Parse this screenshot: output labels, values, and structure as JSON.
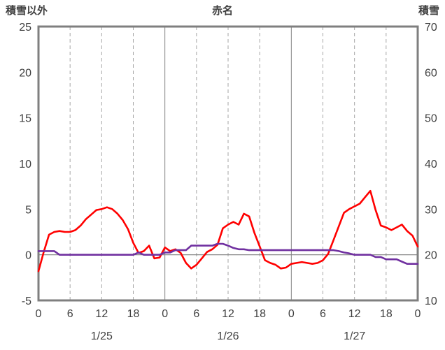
{
  "chart_data": {
    "type": "line",
    "title": "赤名",
    "left_axis_label": "積雪以外",
    "right_axis_label": "積雪",
    "left_axis": {
      "min": -5,
      "max": 25,
      "ticks": [
        -5,
        0,
        5,
        10,
        15,
        20,
        25
      ]
    },
    "right_axis": {
      "min": 10,
      "max": 70,
      "ticks": [
        10,
        20,
        30,
        40,
        50,
        60,
        70
      ]
    },
    "x_axis": {
      "min": 0,
      "max": 72,
      "tick_hours": [
        0,
        6,
        12,
        18,
        24,
        30,
        36,
        42,
        48,
        54,
        60,
        66,
        72
      ],
      "tick_labels": [
        "0",
        "6",
        "12",
        "18",
        "0",
        "6",
        "12",
        "18",
        "0",
        "6",
        "12",
        "18",
        "0"
      ],
      "date_labels": [
        "1/25",
        "1/26",
        "1/27"
      ],
      "date_center_hours": [
        12,
        36,
        60
      ]
    },
    "grid": {
      "day_line_color": "#808080",
      "hour_line_color": "#a6a6a6",
      "zero_line_color": "#808080",
      "border_color": "#7f7f7f"
    },
    "x": [
      0,
      1,
      2,
      3,
      4,
      5,
      6,
      7,
      8,
      9,
      10,
      11,
      12,
      13,
      14,
      15,
      16,
      17,
      18,
      19,
      20,
      21,
      22,
      23,
      24,
      25,
      26,
      27,
      28,
      29,
      30,
      31,
      32,
      33,
      34,
      35,
      36,
      37,
      38,
      39,
      40,
      41,
      42,
      43,
      44,
      45,
      46,
      47,
      48,
      49,
      50,
      51,
      52,
      53,
      54,
      55,
      56,
      57,
      58,
      59,
      60,
      61,
      62,
      63,
      64,
      65,
      66,
      67,
      68,
      69,
      70,
      71,
      72
    ],
    "series": [
      {
        "name": "積雪以外",
        "color": "#ff0000",
        "axis": "left",
        "values": [
          -1.8,
          0.3,
          2.2,
          2.5,
          2.6,
          2.5,
          2.5,
          2.7,
          3.2,
          3.9,
          4.4,
          4.9,
          5.0,
          5.2,
          5.0,
          4.5,
          3.8,
          2.8,
          1.3,
          0.2,
          0.4,
          1.0,
          -0.4,
          -0.3,
          0.8,
          0.4,
          0.6,
          0.2,
          -0.9,
          -1.5,
          -1.1,
          -0.4,
          0.3,
          0.6,
          1.1,
          2.9,
          3.3,
          3.6,
          3.3,
          4.5,
          4.2,
          2.4,
          0.9,
          -0.6,
          -0.9,
          -1.1,
          -1.5,
          -1.4,
          -1.0,
          -0.9,
          -0.8,
          -0.9,
          -1.0,
          -0.9,
          -0.6,
          0.1,
          1.6,
          3.1,
          4.6,
          5.0,
          5.3,
          5.6,
          6.3,
          7.0,
          4.9,
          3.2,
          3.0,
          2.7,
          3.0,
          3.3,
          2.6,
          2.1,
          0.9
        ]
      },
      {
        "name": "積雪",
        "color": "#7030a0",
        "axis": "right",
        "values": [
          20.8,
          20.8,
          20.8,
          20.8,
          20.0,
          20.0,
          20.0,
          20.0,
          20.0,
          20.0,
          20.0,
          20.0,
          20.0,
          20.0,
          20.0,
          20.0,
          20.0,
          20.0,
          20.0,
          20.5,
          20.0,
          20.0,
          20.0,
          20.0,
          20.5,
          20.5,
          21.0,
          21.0,
          21.0,
          22.0,
          22.0,
          22.0,
          22.0,
          22.0,
          22.4,
          22.4,
          22.0,
          21.5,
          21.2,
          21.2,
          21.0,
          21.0,
          21.0,
          21.0,
          21.0,
          21.0,
          21.0,
          21.0,
          21.0,
          21.0,
          21.0,
          21.0,
          21.0,
          21.0,
          21.0,
          21.0,
          21.0,
          20.8,
          20.5,
          20.3,
          20.0,
          20.0,
          20.0,
          20.0,
          19.5,
          19.5,
          19.0,
          19.0,
          19.0,
          18.5,
          18.0,
          18.0,
          18.0
        ]
      }
    ]
  }
}
